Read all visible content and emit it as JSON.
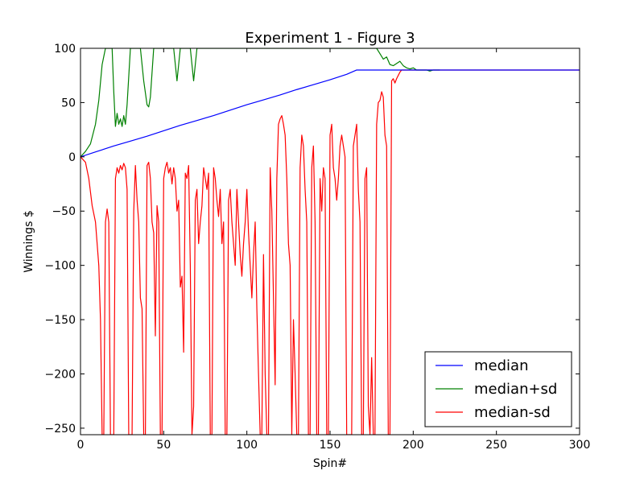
{
  "chart_data": {
    "type": "line",
    "title": "Experiment 1 - Figure 3",
    "xlabel": "Spin#",
    "ylabel": "Winnings $",
    "xlim": [
      0,
      300
    ],
    "ylim": [
      -256,
      100
    ],
    "xticks": [
      0,
      50,
      100,
      150,
      200,
      250,
      300
    ],
    "yticks": [
      -250,
      -200,
      -150,
      -100,
      -50,
      0,
      50,
      100
    ],
    "xtick_labels": [
      "0",
      "50",
      "100",
      "150",
      "200",
      "250",
      "300"
    ],
    "ytick_labels": [
      "−250",
      "−200",
      "−150",
      "−100",
      "−50",
      "0",
      "50",
      "100"
    ],
    "grid": false,
    "legend": "lower-right",
    "series": [
      {
        "name": "median",
        "color": "#0000ff",
        "x": [
          0,
          10,
          20,
          30,
          40,
          50,
          60,
          70,
          80,
          90,
          100,
          110,
          120,
          130,
          140,
          150,
          160,
          166,
          170,
          180,
          190,
          200,
          210,
          220,
          250,
          300
        ],
        "y": [
          0,
          5,
          10,
          14.5,
          19,
          24,
          29,
          33.5,
          38,
          43,
          48,
          52.5,
          57,
          62,
          66.5,
          71,
          76,
          80,
          80,
          80,
          80,
          80,
          80,
          80,
          80,
          80
        ]
      },
      {
        "name": "median+sd",
        "color": "#008000",
        "x": [
          0,
          3,
          6,
          9,
          11,
          13,
          15,
          17,
          19,
          20,
          21,
          22,
          23,
          24,
          25,
          26,
          27,
          28,
          30,
          32,
          34,
          36,
          38,
          40,
          41,
          42,
          44,
          46,
          48,
          50,
          52,
          54,
          56,
          58,
          60,
          62,
          64,
          66,
          68,
          70,
          72,
          74,
          76,
          78,
          80,
          82,
          84,
          86,
          88,
          90,
          92,
          94,
          96,
          98,
          100,
          102,
          104,
          106,
          108,
          110,
          112,
          114,
          116,
          118,
          120,
          122,
          124,
          126,
          128,
          130,
          132,
          134,
          136,
          138,
          140,
          142,
          144,
          146,
          148,
          150,
          152,
          154,
          156,
          158,
          160,
          162,
          164,
          166,
          168,
          170,
          172,
          174,
          176,
          178,
          180,
          182,
          184,
          186,
          188,
          190,
          192,
          194,
          196,
          198,
          200,
          202,
          204,
          206,
          208,
          210,
          212,
          214,
          216
        ],
        "y": [
          0,
          5,
          12,
          30,
          52,
          85,
          100,
          100,
          100,
          60,
          28,
          40,
          30,
          35,
          28,
          38,
          30,
          48,
          100,
          100,
          100,
          100,
          70,
          48,
          46,
          55,
          100,
          100,
          100,
          100,
          100,
          100,
          100,
          70,
          100,
          100,
          100,
          100,
          70,
          100,
          100,
          100,
          100,
          100,
          100,
          100,
          100,
          100,
          100,
          100,
          100,
          100,
          100,
          100,
          100,
          100,
          100,
          100,
          100,
          100,
          100,
          100,
          100,
          100,
          100,
          100,
          100,
          100,
          100,
          100,
          100,
          100,
          100,
          100,
          100,
          100,
          100,
          100,
          100,
          100,
          100,
          100,
          100,
          100,
          100,
          100,
          100,
          100,
          100,
          100,
          100,
          100,
          100,
          100,
          95,
          90,
          92,
          85,
          84,
          86,
          88,
          84,
          82,
          81,
          82,
          80,
          80,
          80,
          80,
          79,
          80,
          80,
          80
        ]
      },
      {
        "name": "median-sd",
        "color": "#ff0000",
        "x": [
          0,
          3,
          5,
          7,
          9,
          11,
          12,
          13,
          14,
          15,
          16,
          17,
          18,
          19,
          20,
          21,
          22,
          23,
          24,
          25,
          26,
          27,
          28,
          29,
          30,
          31,
          32,
          33,
          34,
          35,
          36,
          37,
          38,
          39,
          40,
          41,
          42,
          43,
          44,
          45,
          46,
          47,
          48,
          49,
          50,
          51,
          52,
          53,
          54,
          55,
          56,
          57,
          58,
          59,
          60,
          61,
          62,
          63,
          64,
          65,
          66,
          67,
          68,
          69,
          70,
          71,
          72,
          73,
          74,
          75,
          76,
          77,
          78,
          79,
          80,
          81,
          82,
          83,
          84,
          85,
          86,
          87,
          88,
          89,
          90,
          91,
          92,
          93,
          94,
          95,
          96,
          97,
          98,
          99,
          100,
          101,
          102,
          103,
          104,
          105,
          106,
          107,
          108,
          109,
          110,
          111,
          112,
          113,
          114,
          115,
          116,
          117,
          118,
          119,
          120,
          121,
          122,
          123,
          124,
          125,
          126,
          127,
          128,
          129,
          130,
          131,
          132,
          133,
          134,
          135,
          136,
          137,
          138,
          139,
          140,
          141,
          142,
          143,
          144,
          145,
          146,
          147,
          148,
          149,
          150,
          151,
          152,
          153,
          154,
          155,
          156,
          157,
          158,
          159,
          160,
          161,
          162,
          163,
          164,
          165,
          166,
          167,
          168,
          169,
          170,
          171,
          172,
          173,
          174,
          175,
          176,
          177,
          178,
          179,
          180,
          181,
          182,
          183,
          184,
          185,
          186,
          187,
          188,
          189,
          190,
          191,
          192,
          193,
          194,
          195,
          196,
          197,
          198,
          199,
          200,
          205,
          210,
          215,
          220,
          250,
          300
        ],
        "y": [
          0,
          -5,
          -20,
          -45,
          -60,
          -100,
          -150,
          -256,
          -256,
          -60,
          -48,
          -60,
          -256,
          -256,
          -256,
          -20,
          -10,
          -15,
          -8,
          -12,
          -6,
          -10,
          -30,
          -256,
          -256,
          -256,
          -50,
          -8,
          -40,
          -60,
          -130,
          -140,
          -256,
          -256,
          -8,
          -5,
          -20,
          -60,
          -70,
          -165,
          -45,
          -60,
          -256,
          -256,
          -20,
          -10,
          -5,
          -15,
          -10,
          -25,
          -10,
          -20,
          -50,
          -40,
          -120,
          -110,
          -180,
          -15,
          -20,
          -8,
          -100,
          -256,
          -230,
          -40,
          -30,
          -80,
          -60,
          -45,
          -10,
          -20,
          -30,
          -15,
          -256,
          -256,
          -10,
          -20,
          -40,
          -55,
          -30,
          -80,
          -60,
          -256,
          -256,
          -40,
          -30,
          -60,
          -80,
          -100,
          -30,
          -60,
          -90,
          -110,
          -80,
          -60,
          -30,
          -70,
          -100,
          -130,
          -90,
          -60,
          -140,
          -200,
          -256,
          -256,
          -90,
          -200,
          -256,
          -256,
          -10,
          -50,
          -130,
          -210,
          -20,
          30,
          35,
          38,
          30,
          20,
          -20,
          -80,
          -100,
          -256,
          -150,
          -200,
          -256,
          -256,
          -10,
          20,
          10,
          -30,
          -60,
          -256,
          -256,
          -10,
          10,
          -60,
          -256,
          -256,
          -20,
          -50,
          -10,
          -20,
          -256,
          -256,
          20,
          30,
          -10,
          -20,
          -40,
          -20,
          10,
          20,
          10,
          0,
          -256,
          -256,
          -256,
          -256,
          10,
          20,
          30,
          -30,
          -60,
          -256,
          -256,
          -20,
          -10,
          -230,
          -256,
          -185,
          -256,
          -256,
          30,
          50,
          52,
          60,
          55,
          20,
          10,
          -256,
          -256,
          70,
          72,
          68,
          72,
          75,
          78,
          80,
          80,
          80,
          80,
          80,
          80,
          80,
          80,
          80,
          80,
          80,
          80,
          80,
          80
        ]
      }
    ]
  }
}
